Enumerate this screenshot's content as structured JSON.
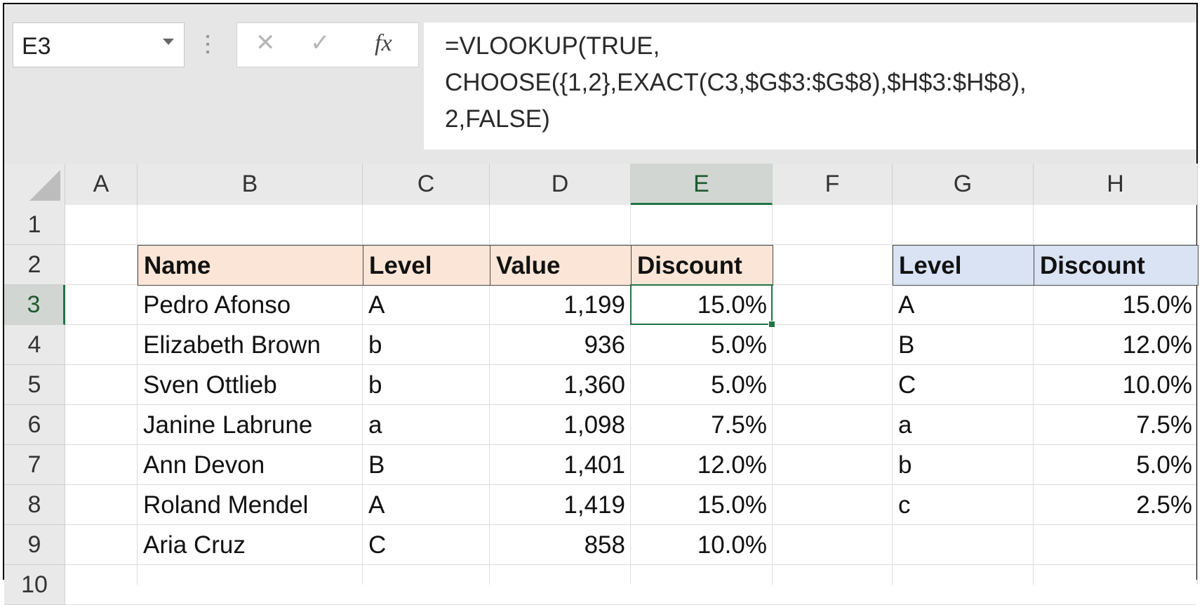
{
  "formula_bar": {
    "name_box": "E3",
    "cancel_icon": "close-icon",
    "cancel_glyph": "✕",
    "enter_icon": "check-icon",
    "enter_glyph": "✓",
    "fx_label": "fx",
    "formula_lines": [
      "=VLOOKUP(TRUE,",
      "CHOOSE({1,2},EXACT(C3,$G$3:$G$8),$H$3:$H$8),",
      "2,FALSE)"
    ]
  },
  "grid": {
    "columns": [
      "A",
      "B",
      "C",
      "D",
      "E",
      "F",
      "G",
      "H"
    ],
    "rows": [
      "1",
      "2",
      "3",
      "4",
      "5",
      "6",
      "7",
      "8",
      "9",
      "10"
    ],
    "active_cell": "E3",
    "main_table": {
      "headers": [
        "Name",
        "Level",
        "Value",
        "Discount"
      ],
      "rows": [
        [
          "Pedro Afonso",
          "A",
          "1,199",
          "15.0%"
        ],
        [
          "Elizabeth Brown",
          "b",
          "936",
          "5.0%"
        ],
        [
          "Sven Ottlieb",
          "b",
          "1,360",
          "5.0%"
        ],
        [
          "Janine Labrune",
          "a",
          "1,098",
          "7.5%"
        ],
        [
          "Ann Devon",
          "B",
          "1,401",
          "12.0%"
        ],
        [
          "Roland Mendel",
          "A",
          "1,419",
          "15.0%"
        ],
        [
          "Aria Cruz",
          "C",
          "858",
          "10.0%"
        ]
      ]
    },
    "lookup_table": {
      "headers": [
        "Level",
        "Discount"
      ],
      "rows": [
        [
          "A",
          "15.0%"
        ],
        [
          "B",
          "12.0%"
        ],
        [
          "C",
          "10.0%"
        ],
        [
          "a",
          "7.5%"
        ],
        [
          "b",
          "5.0%"
        ],
        [
          "c",
          "2.5%"
        ]
      ]
    }
  },
  "colors": {
    "accent": "#217346",
    "header_orange": "#fbe5d6",
    "header_blue": "#dae3f3"
  }
}
